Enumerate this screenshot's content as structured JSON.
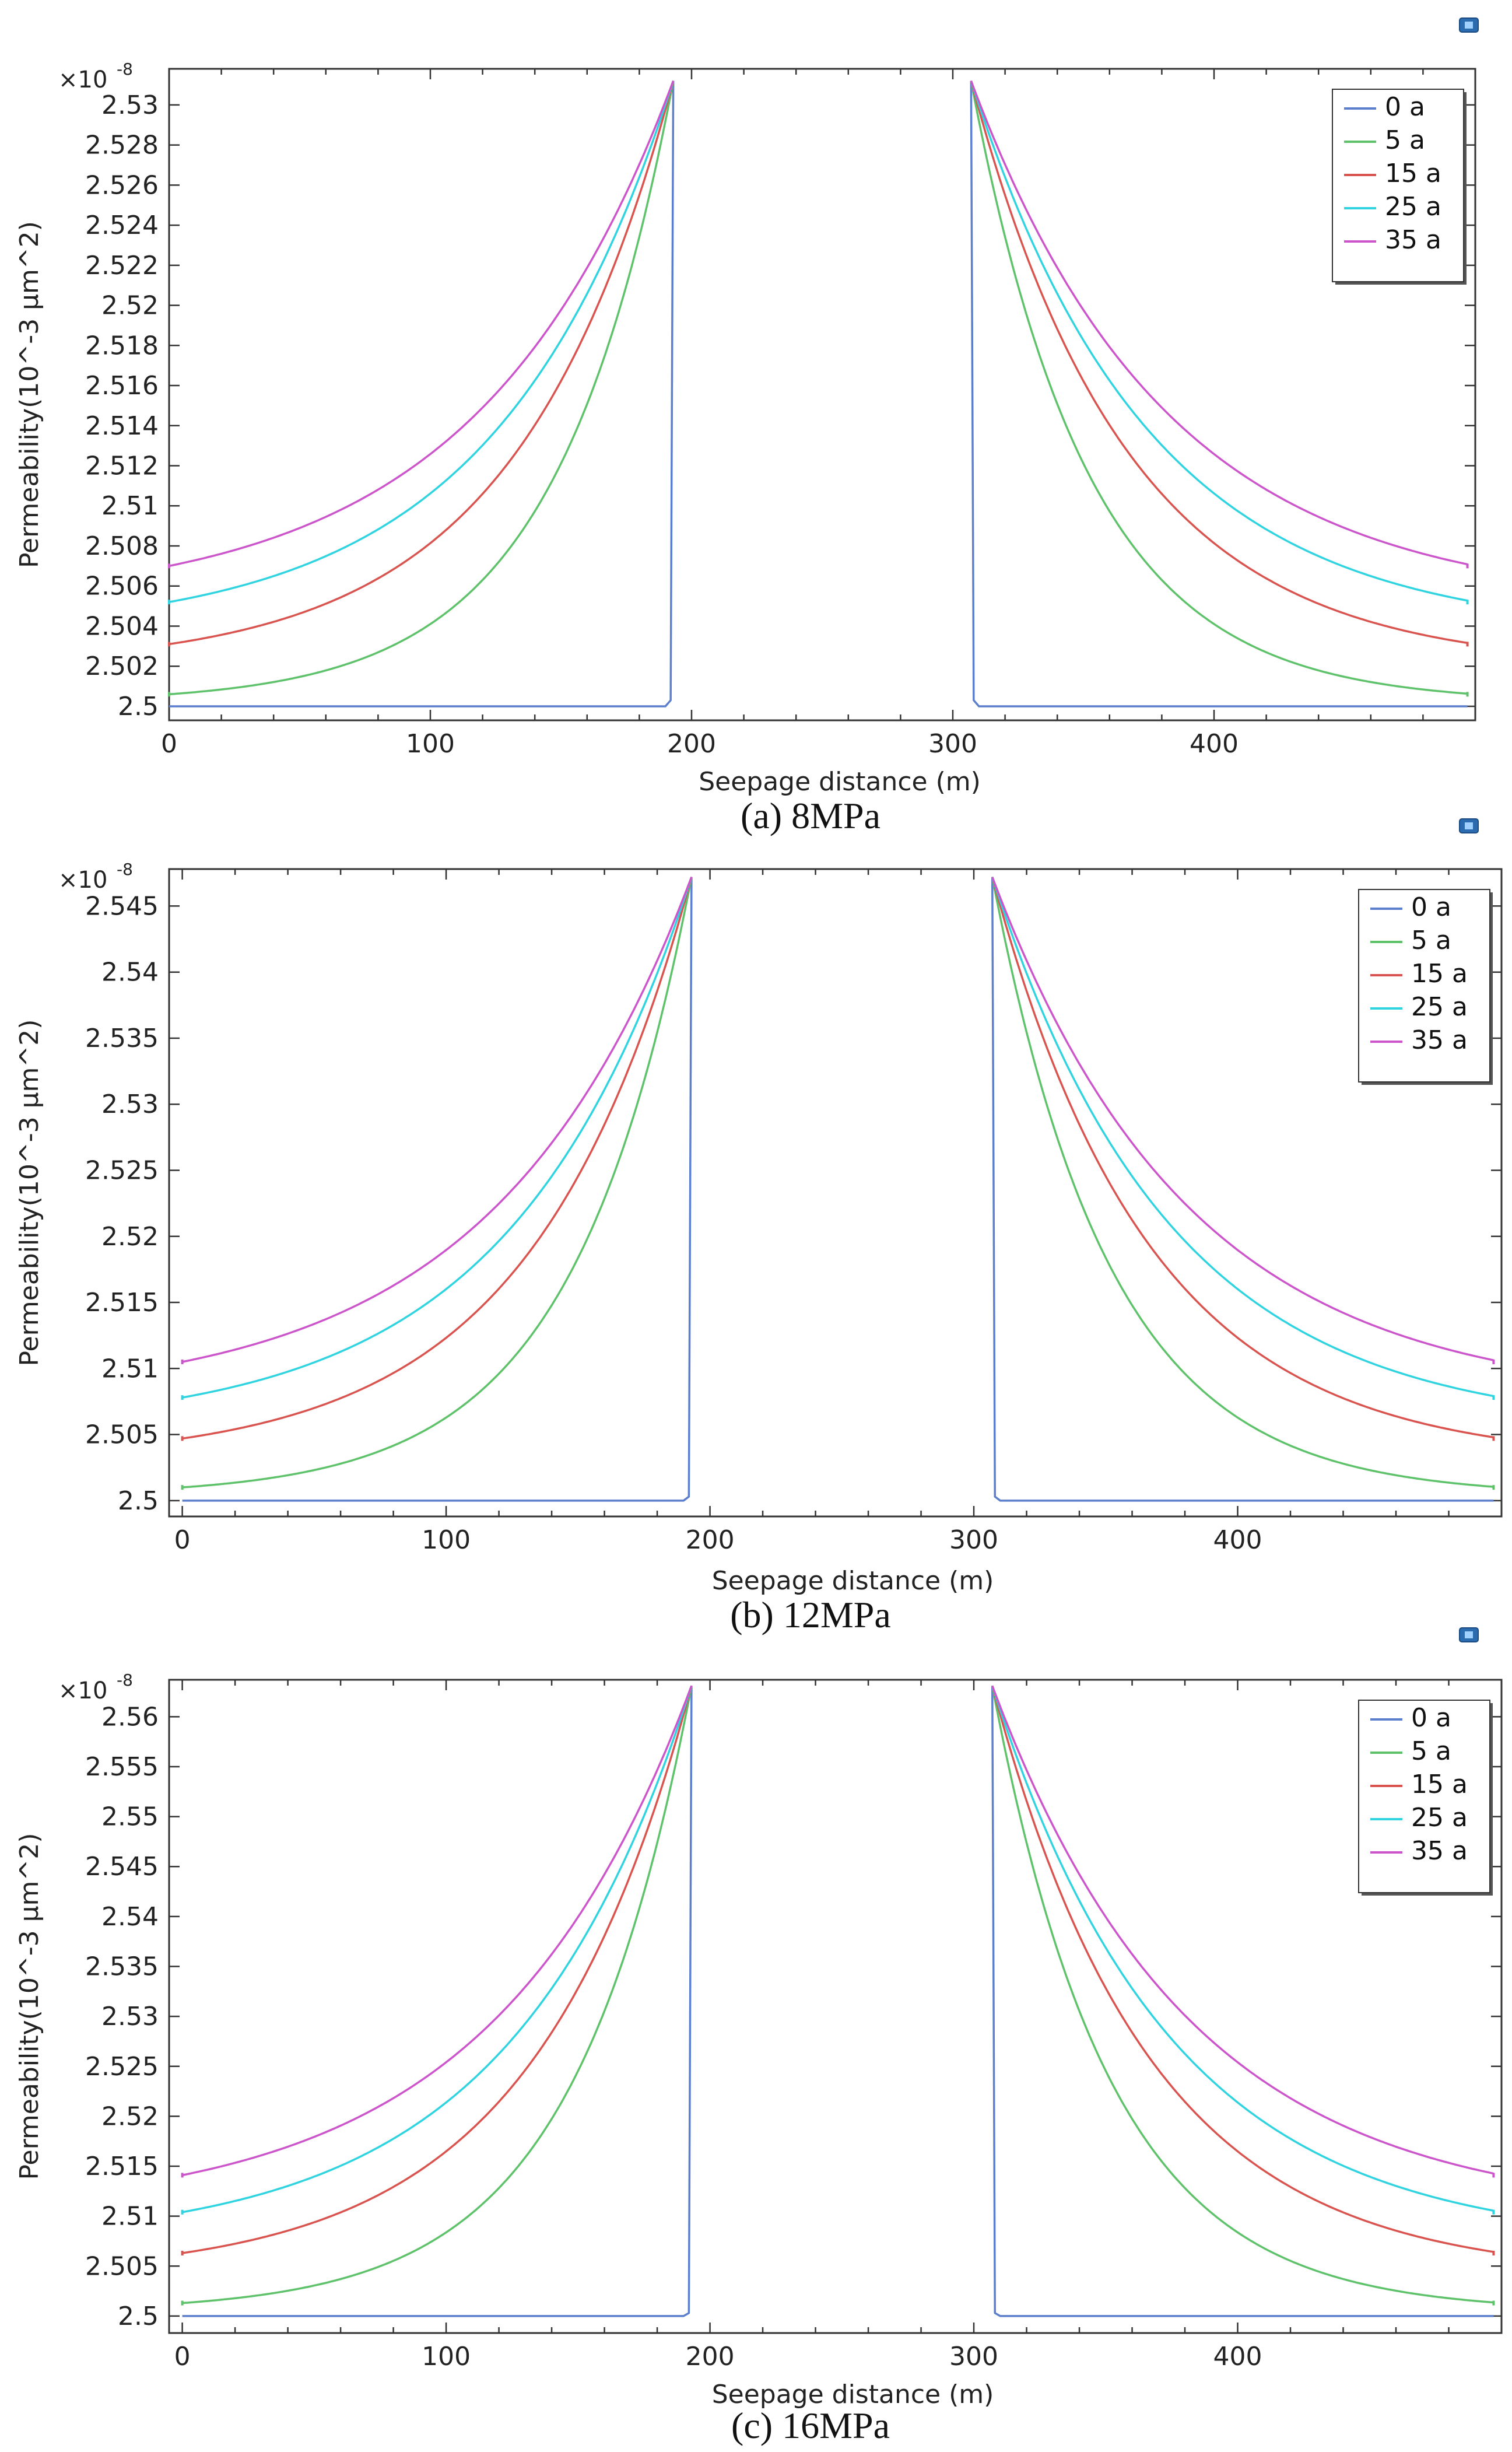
{
  "figure": {
    "corner_icon": "export-icon"
  },
  "chart_data": [
    {
      "type": "line",
      "caption": "(a) 8MPa",
      "xlabel": "Seepage distance (m)",
      "ylabel": "Permeability(10^-3 μm^2)",
      "y_multiplier": "×10",
      "y_exponent": "-8",
      "xlim": [
        0,
        500
      ],
      "ylim": [
        2.4993,
        2.5318
      ],
      "x_ticks": [
        0,
        100,
        200,
        300,
        400
      ],
      "x_tick_labels": [
        "0",
        "100",
        "200",
        "300",
        "400"
      ],
      "y_ticks": [
        2.5,
        2.502,
        2.504,
        2.506,
        2.508,
        2.51,
        2.512,
        2.514,
        2.516,
        2.518,
        2.52,
        2.522,
        2.524,
        2.526,
        2.528,
        2.53
      ],
      "y_tick_labels": [
        "2.5",
        "2.502",
        "2.504",
        "2.506",
        "2.508",
        "2.51",
        "2.512",
        "2.514",
        "2.516",
        "2.518",
        "2.52",
        "2.522",
        "2.524",
        "2.526",
        "2.528",
        "2.53"
      ],
      "peak": 2.5312,
      "fracture_left": 193,
      "fracture_right": 307,
      "legend_position": "top-right",
      "series": [
        {
          "name": "0 a",
          "color": "#5b7fcc",
          "base": 2.5,
          "decay": 0
        },
        {
          "name": "5 a",
          "color": "#5ec26a",
          "base": 2.5006,
          "decay": 45
        },
        {
          "name": "15 a",
          "color": "#d9534f",
          "base": 2.5031,
          "decay": 60
        },
        {
          "name": "25 a",
          "color": "#2fd4e0",
          "base": 2.5052,
          "decay": 68
        },
        {
          "name": "35 a",
          "color": "#cc55cc",
          "base": 2.507,
          "decay": 75
        }
      ]
    },
    {
      "type": "line",
      "caption": "(b) 12MPa",
      "xlabel": "Seepage distance (m)",
      "ylabel": "Permeability(10^-3 μm^2)",
      "y_multiplier": "×10",
      "y_exponent": "-8",
      "xlim": [
        -5,
        500
      ],
      "ylim": [
        2.4988,
        2.5478
      ],
      "x_ticks": [
        0,
        100,
        200,
        300,
        400
      ],
      "x_tick_labels": [
        "0",
        "100",
        "200",
        "300",
        "400"
      ],
      "y_ticks": [
        2.5,
        2.505,
        2.51,
        2.515,
        2.52,
        2.525,
        2.53,
        2.535,
        2.54,
        2.545
      ],
      "y_tick_labels": [
        "2.5",
        "2.505",
        "2.51",
        "2.515",
        "2.52",
        "2.525",
        "2.53",
        "2.535",
        "2.54",
        "2.545"
      ],
      "peak": 2.5472,
      "fracture_left": 193,
      "fracture_right": 307,
      "legend_position": "top-right",
      "series": [
        {
          "name": "0 a",
          "color": "#5b7fcc",
          "base": 2.5,
          "decay": 0
        },
        {
          "name": "5 a",
          "color": "#5ec26a",
          "base": 2.501,
          "decay": 45
        },
        {
          "name": "15 a",
          "color": "#d9534f",
          "base": 2.5047,
          "decay": 60
        },
        {
          "name": "25 a",
          "color": "#2fd4e0",
          "base": 2.5078,
          "decay": 68
        },
        {
          "name": "35 a",
          "color": "#cc55cc",
          "base": 2.5105,
          "decay": 75
        }
      ]
    },
    {
      "type": "line",
      "caption": "(c) 16MPa",
      "xlabel": "Seepage distance (m)",
      "ylabel": "Permeability(10^-3 μm^2)",
      "y_multiplier": "×10",
      "y_exponent": "-8",
      "xlim": [
        -5,
        500
      ],
      "ylim": [
        2.4983,
        2.5637
      ],
      "x_ticks": [
        0,
        100,
        200,
        300,
        400
      ],
      "x_tick_labels": [
        "0",
        "100",
        "200",
        "300",
        "400"
      ],
      "y_ticks": [
        2.5,
        2.505,
        2.51,
        2.515,
        2.52,
        2.525,
        2.53,
        2.535,
        2.54,
        2.545,
        2.55,
        2.555,
        2.56
      ],
      "y_tick_labels": [
        "2.5",
        "2.505",
        "2.51",
        "2.515",
        "2.52",
        "2.525",
        "2.53",
        "2.535",
        "2.54",
        "2.545",
        "2.55",
        "2.555",
        "2.56"
      ],
      "peak": 2.5631,
      "fracture_left": 193,
      "fracture_right": 307,
      "legend_position": "top-right",
      "series": [
        {
          "name": "0 a",
          "color": "#5b7fcc",
          "base": 2.5,
          "decay": 0
        },
        {
          "name": "5 a",
          "color": "#5ec26a",
          "base": 2.5013,
          "decay": 45
        },
        {
          "name": "15 a",
          "color": "#d9534f",
          "base": 2.5063,
          "decay": 60
        },
        {
          "name": "25 a",
          "color": "#2fd4e0",
          "base": 2.5104,
          "decay": 68
        },
        {
          "name": "35 a",
          "color": "#cc55cc",
          "base": 2.5141,
          "decay": 75
        }
      ]
    }
  ]
}
